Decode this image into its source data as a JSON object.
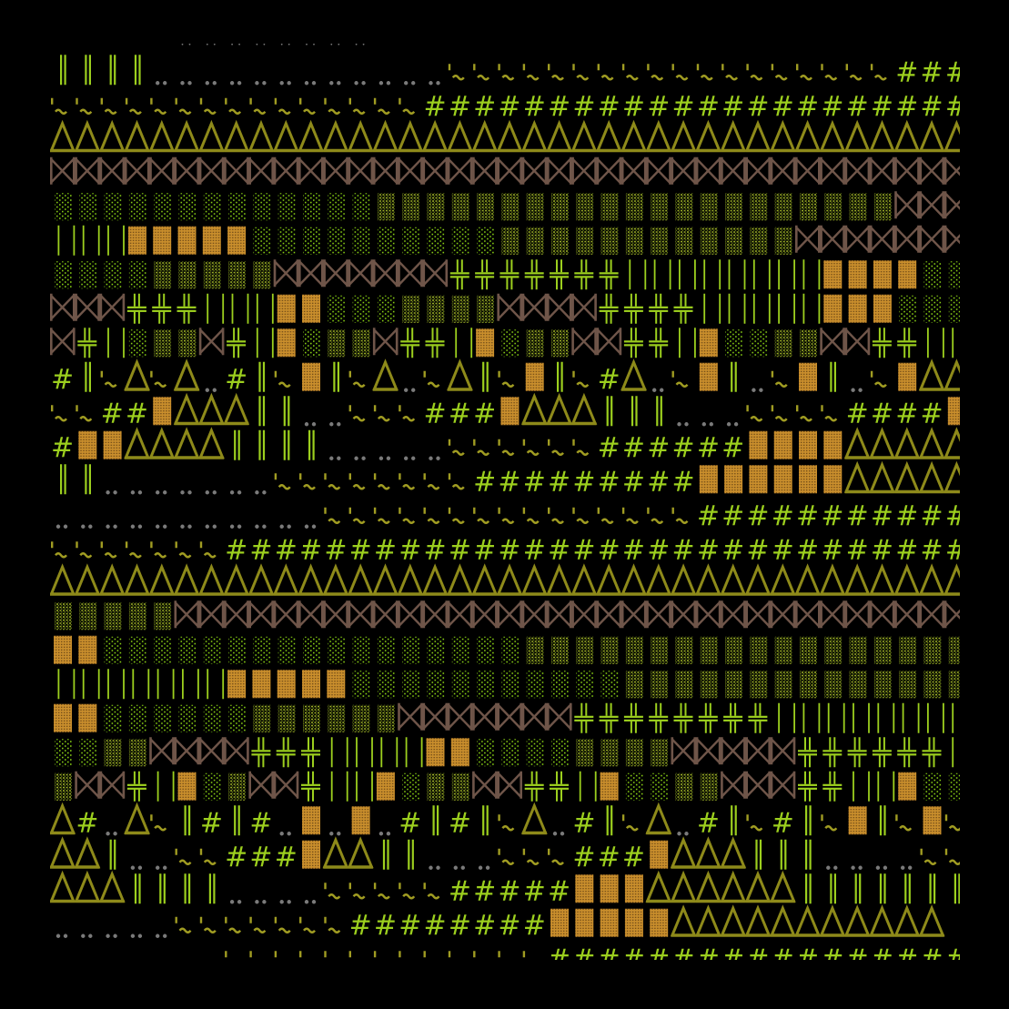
{
  "colors": {
    "background": "#000000",
    "green": "#9ccf1e",
    "olive": "#8e8a1a",
    "tilde": "#a09c22",
    "brown": "#6f5549",
    "orange": "#c98e2c",
    "shade_light": "#86cc14",
    "shade_medium": "#9aad26",
    "dots": "#7a7a7a"
  },
  "rows": [
    [
      [
        " ",
        5
      ],
      [
        "‥",
        8
      ],
      [
        " ",
        24
      ]
    ],
    [
      [
        "‖",
        4
      ],
      [
        "‥",
        12
      ],
      [
        "'~",
        18
      ],
      [
        "#",
        3
      ]
    ],
    [
      [
        "'~",
        15
      ],
      [
        "#",
        22
      ]
    ],
    [
      [
        "Δ",
        37
      ]
    ],
    [
      [
        "⋈",
        37
      ]
    ],
    [
      [
        "░",
        13
      ],
      [
        "▒",
        21
      ],
      [
        "⋈",
        3
      ]
    ],
    [
      [
        "|",
        3
      ],
      [
        "▓",
        5
      ],
      [
        "░",
        10
      ],
      [
        "▒",
        12
      ],
      [
        "⋈",
        7
      ]
    ],
    [
      [
        "░",
        4
      ],
      [
        "▒",
        5
      ],
      [
        "⋈",
        7
      ],
      [
        "╬",
        7
      ],
      [
        "|",
        8
      ],
      [
        "▓",
        4
      ],
      [
        "░",
        2
      ]
    ],
    [
      [
        "⋈",
        3
      ],
      [
        "╬",
        3
      ],
      [
        "|",
        3
      ],
      [
        "▓",
        2
      ],
      [
        "░",
        3
      ],
      [
        "▒",
        4
      ],
      [
        "⋈",
        4
      ],
      [
        "╬",
        4
      ],
      [
        "|",
        5
      ],
      [
        "▓",
        3
      ],
      [
        "░",
        3
      ]
    ],
    [
      [
        "⋈",
        1
      ],
      [
        "╬",
        1
      ],
      [
        "|",
        1
      ],
      [
        "░",
        1
      ],
      [
        "▒",
        2
      ],
      [
        "⋈",
        1
      ],
      [
        "╬",
        1
      ],
      [
        "|",
        1
      ],
      [
        "▓",
        1
      ],
      [
        "░",
        1
      ],
      [
        "▒",
        2
      ],
      [
        "⋈",
        1
      ],
      [
        "╬",
        2
      ],
      [
        "|",
        1
      ],
      [
        "▓",
        1
      ],
      [
        "░",
        1
      ],
      [
        "▒",
        2
      ],
      [
        "⋈",
        2
      ],
      [
        "╬",
        2
      ],
      [
        "|",
        1
      ],
      [
        "▓",
        1
      ],
      [
        "░",
        2
      ],
      [
        "▒",
        2
      ],
      [
        "⋈",
        2
      ],
      [
        "╬",
        2
      ],
      [
        "|",
        2
      ]
    ],
    [
      [
        "#",
        1
      ],
      [
        "‖",
        1
      ],
      [
        "'~",
        1
      ],
      [
        "Δ",
        1
      ],
      [
        "'~",
        1
      ],
      [
        "Δ",
        1
      ],
      [
        "‥",
        1
      ],
      [
        "#",
        1
      ],
      [
        "‖",
        1
      ],
      [
        "'~",
        1
      ],
      [
        "▓",
        1
      ],
      [
        "‖",
        1
      ],
      [
        "'~",
        1
      ],
      [
        "Δ",
        1
      ],
      [
        "‥",
        1
      ],
      [
        "'~",
        1
      ],
      [
        "Δ",
        1
      ],
      [
        "‖",
        1
      ],
      [
        "'~",
        1
      ],
      [
        "▓",
        1
      ],
      [
        "‖",
        1
      ],
      [
        "'~",
        1
      ],
      [
        "#",
        1
      ],
      [
        "Δ",
        1
      ],
      [
        "‥",
        1
      ],
      [
        "'~",
        1
      ],
      [
        "▓",
        1
      ],
      [
        "‖",
        1
      ],
      [
        "‥",
        1
      ],
      [
        "'~",
        1
      ],
      [
        "▓",
        1
      ],
      [
        "‖",
        1
      ],
      [
        "‥",
        1
      ],
      [
        "'~",
        1
      ],
      [
        "▓",
        1
      ],
      [
        "Δ",
        2
      ]
    ],
    [
      [
        "'~",
        2
      ],
      [
        "#",
        2
      ],
      [
        "▓",
        1
      ],
      [
        "Δ",
        3
      ],
      [
        "‖",
        2
      ],
      [
        "‥",
        2
      ],
      [
        "'~",
        3
      ],
      [
        "#",
        3
      ],
      [
        "▓",
        1
      ],
      [
        "Δ",
        3
      ],
      [
        "‖",
        3
      ],
      [
        "‥",
        3
      ],
      [
        "'~",
        4
      ],
      [
        "#",
        4
      ],
      [
        "▓",
        1
      ]
    ],
    [
      [
        "#",
        1
      ],
      [
        "▓",
        2
      ],
      [
        "Δ",
        4
      ],
      [
        "‖",
        4
      ],
      [
        "‥",
        5
      ],
      [
        "'~",
        6
      ],
      [
        "#",
        6
      ],
      [
        "▓",
        4
      ],
      [
        "Δ",
        5
      ]
    ],
    [
      [
        "‖",
        2
      ],
      [
        "‥",
        7
      ],
      [
        "'~",
        8
      ],
      [
        "#",
        9
      ],
      [
        "▓",
        6
      ],
      [
        "Δ",
        5
      ]
    ],
    [
      [
        "‥",
        11
      ],
      [
        "'~",
        15
      ],
      [
        "#",
        11
      ]
    ],
    [
      [
        "'~",
        7
      ],
      [
        "#",
        30
      ]
    ],
    [
      [
        "Δ",
        37
      ]
    ],
    [
      [
        "▒",
        5
      ],
      [
        "⋈",
        32
      ]
    ],
    [
      [
        "▓",
        2
      ],
      [
        "░",
        17
      ],
      [
        "▒",
        18
      ]
    ],
    [
      [
        "|",
        7
      ],
      [
        "▓",
        5
      ],
      [
        "░",
        11
      ],
      [
        "▒",
        14
      ]
    ],
    [
      [
        "▓",
        2
      ],
      [
        "░",
        6
      ],
      [
        "▒",
        6
      ],
      [
        "⋈",
        7
      ],
      [
        "╬",
        8
      ],
      [
        "|",
        8
      ]
    ],
    [
      [
        "░",
        2
      ],
      [
        "▒",
        2
      ],
      [
        "⋈",
        4
      ],
      [
        "╬",
        3
      ],
      [
        "|",
        4
      ],
      [
        "▓",
        2
      ],
      [
        "░",
        4
      ],
      [
        "▒",
        4
      ],
      [
        "⋈",
        5
      ],
      [
        "╬",
        6
      ],
      [
        "|",
        1
      ]
    ],
    [
      [
        "▒",
        1
      ],
      [
        "⋈",
        2
      ],
      [
        "╬",
        1
      ],
      [
        "|",
        1
      ],
      [
        "▓",
        1
      ],
      [
        "░",
        1
      ],
      [
        "▒",
        1
      ],
      [
        "⋈",
        2
      ],
      [
        "╬",
        1
      ],
      [
        "|",
        2
      ],
      [
        "▓",
        1
      ],
      [
        "░",
        1
      ],
      [
        "▒",
        2
      ],
      [
        "⋈",
        2
      ],
      [
        "╬",
        2
      ],
      [
        "|",
        1
      ],
      [
        "▓",
        1
      ],
      [
        "░",
        2
      ],
      [
        "▒",
        2
      ],
      [
        "⋈",
        3
      ],
      [
        "╬",
        2
      ],
      [
        "|",
        2
      ],
      [
        "▓",
        1
      ],
      [
        "░",
        2
      ]
    ],
    [
      [
        "Δ",
        1
      ],
      [
        "#",
        1
      ],
      [
        "‥",
        1
      ],
      [
        "Δ",
        1
      ],
      [
        "'~",
        1
      ],
      [
        "‖",
        1
      ],
      [
        "#",
        1
      ],
      [
        "‖",
        1
      ],
      [
        "#",
        1
      ],
      [
        "‥",
        1
      ],
      [
        "▓",
        1
      ],
      [
        "‥",
        1
      ],
      [
        "▓",
        1
      ],
      [
        "‥",
        1
      ],
      [
        "#",
        1
      ],
      [
        "‖",
        1
      ],
      [
        "#",
        1
      ],
      [
        "‖",
        1
      ],
      [
        "'~",
        1
      ],
      [
        "Δ",
        1
      ],
      [
        "‥",
        1
      ],
      [
        "#",
        1
      ],
      [
        "‖",
        1
      ],
      [
        "'~",
        1
      ],
      [
        "Δ",
        1
      ],
      [
        "‥",
        1
      ],
      [
        "#",
        1
      ],
      [
        "‖",
        1
      ],
      [
        "'~",
        1
      ],
      [
        "#",
        1
      ],
      [
        "‖",
        1
      ],
      [
        "'~",
        1
      ],
      [
        "▓",
        1
      ],
      [
        "‖",
        1
      ],
      [
        "'~",
        1
      ],
      [
        "▓",
        1
      ],
      [
        "'~",
        1
      ]
    ],
    [
      [
        "Δ",
        2
      ],
      [
        "‖",
        1
      ],
      [
        "‥",
        2
      ],
      [
        "'~",
        2
      ],
      [
        "#",
        3
      ],
      [
        "▓",
        1
      ],
      [
        "Δ",
        2
      ],
      [
        "‖",
        2
      ],
      [
        "‥",
        3
      ],
      [
        "'~",
        3
      ],
      [
        "#",
        3
      ],
      [
        "▓",
        1
      ],
      [
        "Δ",
        3
      ],
      [
        "‖",
        3
      ],
      [
        "‥",
        4
      ],
      [
        "'~",
        2
      ]
    ],
    [
      [
        "Δ",
        3
      ],
      [
        "‖",
        4
      ],
      [
        "‥",
        4
      ],
      [
        "'~",
        5
      ],
      [
        "#",
        5
      ],
      [
        "▓",
        3
      ],
      [
        "Δ",
        6
      ],
      [
        "‖",
        7
      ]
    ],
    [
      [
        "‥",
        5
      ],
      [
        "'~",
        7
      ],
      [
        "#",
        8
      ],
      [
        "▓",
        5
      ],
      [
        "Δ",
        11
      ],
      [
        " ",
        1
      ]
    ],
    [
      [
        " ",
        7
      ],
      [
        "'~",
        13
      ],
      [
        "#",
        17
      ]
    ]
  ]
}
